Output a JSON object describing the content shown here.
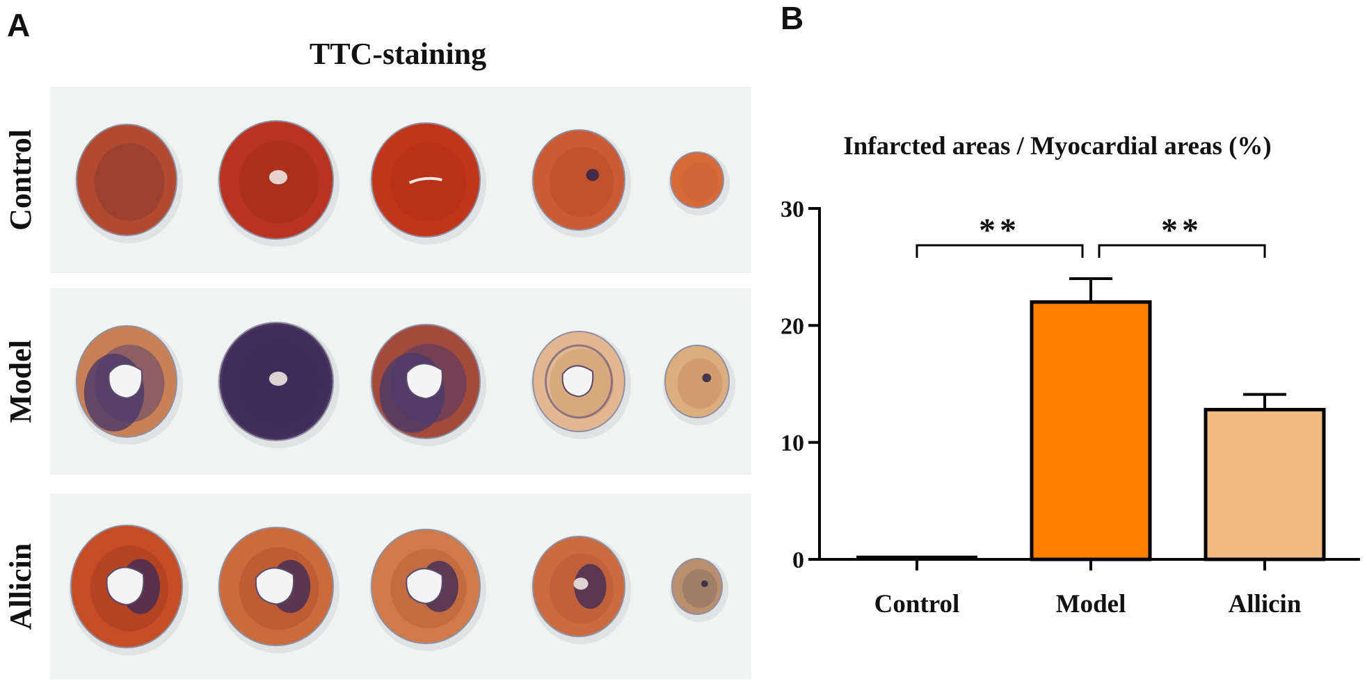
{
  "panel_a": {
    "letter": "A",
    "title": "TTC-staining",
    "rows": [
      {
        "label": "Control",
        "slices": [
          {
            "color": "#b24a32",
            "inner": "#8a3a30",
            "lumen": "none",
            "infarct": "none"
          },
          {
            "color": "#b83420",
            "inner": "#a02e1e",
            "lumen": "small",
            "infarct": "none"
          },
          {
            "color": "#c0361c",
            "inner": "#b0301a",
            "lumen": "slit",
            "infarct": "none"
          },
          {
            "color": "#cc5a34",
            "inner": "#b84a2c",
            "lumen": "none",
            "infarct": "dot"
          },
          {
            "color": "#d86a3a",
            "inner": "#cc6034",
            "lumen": "none",
            "infarct": "none"
          }
        ]
      },
      {
        "label": "Model",
        "slices": [
          {
            "color": "#c98054",
            "inner": "#5a4470",
            "lumen": "open",
            "infarct": "large"
          },
          {
            "color": "#4a3560",
            "inner": "#3c2c58",
            "lumen": "small",
            "infarct": "full"
          },
          {
            "color": "#a44a3c",
            "inner": "#4a3a66",
            "lumen": "open",
            "infarct": "large"
          },
          {
            "color": "#e2b892",
            "inner": "#d09a6e",
            "lumen": "open",
            "infarct": "ring"
          },
          {
            "color": "#dcae7e",
            "inner": "#c89060",
            "lumen": "none",
            "infarct": "dot"
          }
        ]
      },
      {
        "label": "Allicin",
        "slices": [
          {
            "color": "#c64c26",
            "inner": "#a63c20",
            "lumen": "open",
            "infarct": "patch"
          },
          {
            "color": "#cc6a3c",
            "inner": "#b45030",
            "lumen": "open",
            "infarct": "patch"
          },
          {
            "color": "#d07a4c",
            "inner": "#b8603a",
            "lumen": "open",
            "infarct": "patch"
          },
          {
            "color": "#cc6a40",
            "inner": "#b85a36",
            "lumen": "small",
            "infarct": "patch"
          },
          {
            "color": "#b89070",
            "inner": "#8a6e60",
            "lumen": "none",
            "infarct": "dot"
          }
        ]
      }
    ]
  },
  "panel_b": {
    "letter": "B",
    "significance": [
      "**",
      "**"
    ]
  },
  "chart_data": {
    "type": "bar",
    "title": "Infarcted areas / Myocardial areas (%)",
    "categories": [
      "Control",
      "Model",
      "Allicin"
    ],
    "values": [
      0.2,
      22.0,
      12.8
    ],
    "errors": [
      0,
      2.0,
      1.3
    ],
    "colors": [
      "#ffffff",
      "#ff8000",
      "#f0b882"
    ],
    "ylim": [
      0,
      30
    ],
    "yticks": [
      0,
      10,
      20,
      30
    ],
    "xlabel": "",
    "ylabel": "",
    "grid": false
  }
}
